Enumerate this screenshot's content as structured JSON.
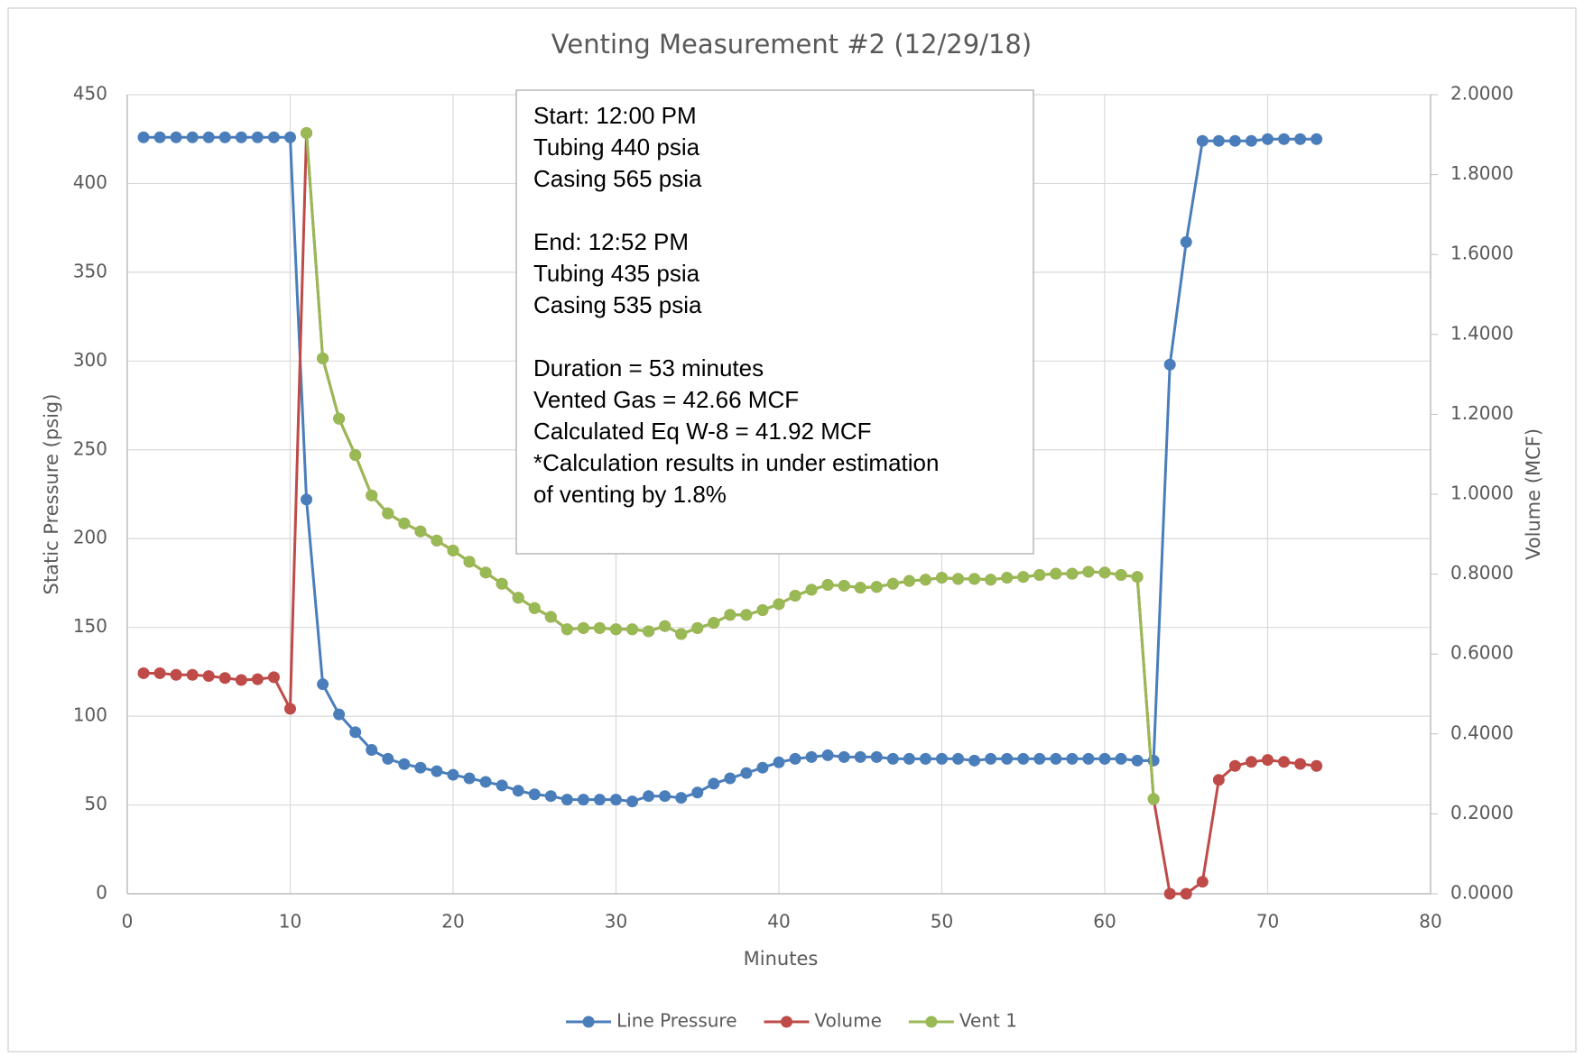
{
  "chart_data": {
    "type": "line",
    "title": "Venting Measurement #2 (12/29/18)",
    "xlabel": "Minutes",
    "ylabel": "Static Pressure (psig)",
    "y2label": "Volume (MCF)",
    "annotation": [
      [
        "Start: 12:00 PM",
        "Tubing 440 psia",
        "Casing 565 psia"
      ],
      [
        "End: 12:52 PM",
        "Tubing 435 psia",
        "Casing 535 psia"
      ],
      [
        "Duration = 53 minutes",
        "Vented Gas = 42.66 MCF",
        "Calculated Eq W-8 = 41.92 MCF",
        "*Calculation results in under estimation",
        "of venting by 1.8%"
      ]
    ],
    "x": [
      1,
      2,
      3,
      4,
      5,
      6,
      7,
      8,
      9,
      10,
      11,
      12,
      13,
      14,
      15,
      16,
      17,
      18,
      19,
      20,
      21,
      22,
      23,
      24,
      25,
      26,
      27,
      28,
      29,
      30,
      31,
      32,
      33,
      34,
      35,
      36,
      37,
      38,
      39,
      40,
      41,
      42,
      43,
      44,
      45,
      46,
      47,
      48,
      49,
      50,
      51,
      52,
      53,
      54,
      55,
      56,
      57,
      58,
      59,
      60,
      61,
      62,
      63,
      64,
      65,
      66,
      67,
      68,
      69,
      70,
      71,
      72,
      73
    ],
    "xlim": [
      0,
      80
    ],
    "xticks": [
      0,
      10,
      20,
      30,
      40,
      50,
      60,
      70,
      80
    ],
    "ylim": [
      0,
      450
    ],
    "yticks": [
      0,
      50,
      100,
      150,
      200,
      250,
      300,
      350,
      400,
      450
    ],
    "y2lim": [
      0,
      2
    ],
    "y2ticks": [
      {
        "value": 0,
        "label": "0.0000"
      },
      {
        "value": 0.2,
        "label": "0.2000"
      },
      {
        "value": 0.4,
        "label": "0.4000"
      },
      {
        "value": 0.6,
        "label": "0.6000"
      },
      {
        "value": 0.8,
        "label": "0.8000"
      },
      {
        "value": 1.0,
        "label": "1.0000"
      },
      {
        "value": 1.2,
        "label": "1.2000"
      },
      {
        "value": 1.4,
        "label": "1.4000"
      },
      {
        "value": 1.6,
        "label": "1.6000"
      },
      {
        "value": 1.8,
        "label": "1.8000"
      },
      {
        "value": 2.0,
        "label": "2.0000"
      }
    ],
    "grid": true,
    "legend": "bottom",
    "series": [
      {
        "name": "Line Pressure",
        "color": "#4a7ebb",
        "axis": "y",
        "values": [
          426,
          426,
          426,
          426,
          426,
          426,
          426,
          426,
          426,
          426,
          222,
          118,
          101,
          91,
          81,
          76,
          73,
          71,
          69,
          67,
          65,
          63,
          61,
          58,
          56,
          55,
          53,
          53,
          53,
          53,
          52,
          55,
          55,
          54,
          57,
          62,
          65,
          68,
          71,
          74,
          76,
          77,
          78,
          77,
          77,
          77,
          76,
          76,
          76,
          76,
          76,
          75,
          76,
          76,
          76,
          76,
          76,
          76,
          76,
          76,
          76,
          75,
          75,
          298,
          367,
          424,
          424,
          424,
          424,
          425,
          425,
          425,
          425
        ]
      },
      {
        "name": "Volume",
        "color": "#be4b48",
        "axis": "y2",
        "values": [
          0.552,
          0.552,
          0.548,
          0.548,
          0.545,
          0.54,
          0.535,
          0.537,
          0.542,
          0.463,
          1.904,
          1.34,
          1.189,
          1.098,
          0.997,
          0.952,
          0.927,
          0.907,
          0.884,
          0.859,
          0.831,
          0.804,
          0.776,
          0.741,
          0.715,
          0.693,
          0.662,
          0.665,
          0.665,
          0.662,
          0.662,
          0.657,
          0.67,
          0.65,
          0.665,
          0.678,
          0.698,
          0.698,
          0.71,
          0.725,
          0.746,
          0.761,
          0.773,
          0.771,
          0.766,
          0.768,
          0.776,
          0.783,
          0.786,
          0.791,
          0.788,
          0.788,
          0.786,
          0.791,
          0.793,
          0.798,
          0.801,
          0.801,
          0.806,
          0.804,
          0.798,
          0.793,
          0.237,
          0,
          0,
          0.03,
          0.285,
          0.32,
          0.33,
          0.335,
          0.33,
          0.325,
          0.32
        ]
      },
      {
        "name": "Vent 1",
        "color": "#98b954",
        "axis": "y2",
        "values": [
          null,
          null,
          null,
          null,
          null,
          null,
          null,
          null,
          null,
          null,
          1.904,
          1.34,
          1.189,
          1.098,
          0.997,
          0.952,
          0.927,
          0.907,
          0.884,
          0.859,
          0.831,
          0.804,
          0.776,
          0.741,
          0.715,
          0.693,
          0.662,
          0.665,
          0.665,
          0.662,
          0.662,
          0.657,
          0.67,
          0.65,
          0.665,
          0.678,
          0.698,
          0.698,
          0.71,
          0.725,
          0.746,
          0.761,
          0.773,
          0.771,
          0.766,
          0.768,
          0.776,
          0.783,
          0.786,
          0.791,
          0.788,
          0.788,
          0.786,
          0.791,
          0.793,
          0.798,
          0.801,
          0.801,
          0.806,
          0.804,
          0.798,
          0.793,
          0.237,
          null,
          null,
          null,
          null,
          null,
          null,
          null,
          null,
          null,
          null
        ]
      }
    ]
  }
}
